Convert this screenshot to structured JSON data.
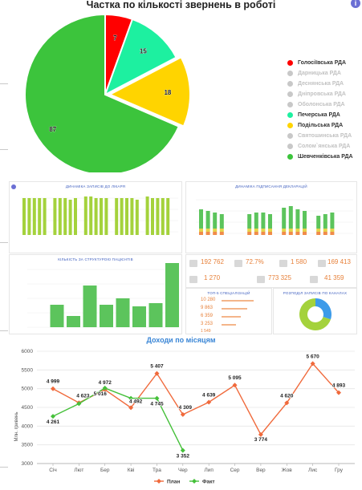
{
  "pie": {
    "title": "Частка по кількості звернень в роботі",
    "colors": {
      "red": "#ff0000",
      "mint": "#1df0a0",
      "yellow": "#ffd400",
      "green": "#3cc43c",
      "gray": "#c8c8c8"
    },
    "legend": [
      {
        "label": "Голосіївська РДА",
        "color": "#ff0000",
        "active": true
      },
      {
        "label": "Дарницька РДА",
        "color": "#c8c8c8",
        "active": false
      },
      {
        "label": "Деснянська РДА",
        "color": "#c8c8c8",
        "active": false
      },
      {
        "label": "Дніпровська РДА",
        "color": "#c8c8c8",
        "active": false
      },
      {
        "label": "Оболонська РДА",
        "color": "#c8c8c8",
        "active": false
      },
      {
        "label": "Печерська РДА",
        "color": "#1df0a0",
        "active": true
      },
      {
        "label": "Подільська РДА",
        "color": "#ffd400",
        "active": true
      },
      {
        "label": "Святошинська РДА",
        "color": "#c8c8c8",
        "active": false
      },
      {
        "label": "Солом`янська РДА",
        "color": "#c8c8c8",
        "active": false
      },
      {
        "label": "Шевченківська РДА",
        "color": "#3cc43c",
        "active": true
      }
    ]
  },
  "dashboard": {
    "panel1_title": "ДИНАМІКА ЗАПИСІВ ДО ЛІКАРЯ",
    "panel2_title": "ДИНАМІКА ПІДПИСАННЯ ДЕКЛАРАЦІЙ",
    "panel3_title": "КІЛЬКІСТЬ ЗА СТРУКТУРОЮ ПАЦІЄНТІВ",
    "panel4_title": "ТОП-5 СПЕЦІАЛІЗАЦІЙ",
    "panel5_title": "РОЗПОДІЛ ЗАПИСІВ ПО КАНАЛАХ",
    "kpi": [
      "192 762",
      "72.7%",
      "1 580",
      "169 413",
      "1 270",
      "773 325",
      "41 359"
    ],
    "top5": [
      "10 280",
      "9 863",
      "6 359",
      "3 253",
      "1 549"
    ]
  },
  "chart_data": [
    {
      "type": "pie",
      "title": "Частка по кількості звернень в роботі",
      "series": [
        {
          "name": "Голосіївська РДА",
          "value": 7,
          "label": "7"
        },
        {
          "name": "Печерська РДА",
          "value": 15,
          "label": "15"
        },
        {
          "name": "Подільська РДА",
          "value": 18,
          "label": "18"
        },
        {
          "name": "Шевченківська РДА",
          "value": 87,
          "label": "87"
        }
      ]
    },
    {
      "type": "line",
      "title": "Доходи по місяцям",
      "ylabel": "Млн. гривень",
      "categories": [
        "Січ",
        "Лют",
        "Бер",
        "Кві",
        "Тра",
        "Чер",
        "Лип",
        "Сер",
        "Вер",
        "Жов",
        "Лис",
        "Гру"
      ],
      "ylim": [
        3000,
        6000
      ],
      "yticks": [
        3000,
        3500,
        4000,
        4500,
        5000,
        5500,
        6000
      ],
      "series": [
        {
          "name": "План",
          "color": "#f06a3c",
          "values": [
            4999,
            4623,
            4972,
            4492,
            5407,
            4309,
            4639,
            5095,
            3774,
            4620,
            5670,
            4893
          ],
          "labels": [
            "4 999",
            "4 623",
            "4 972",
            "4 492",
            "5 407",
            "4 309",
            "4 639",
            "5 095",
            "3 774",
            "4 620",
            "5 670",
            "4 893"
          ]
        },
        {
          "name": "Факт",
          "color": "#45c03a",
          "values": [
            4261,
            4600,
            5016,
            4745,
            4745,
            3352,
            null,
            null,
            null,
            null,
            null,
            null
          ],
          "labels": [
            "4 261",
            "",
            "5 016",
            "",
            "4 745",
            "3 352",
            "",
            "",
            "",
            "",
            "",
            ""
          ]
        }
      ],
      "legend": "bottom-center",
      "grid": true
    }
  ]
}
